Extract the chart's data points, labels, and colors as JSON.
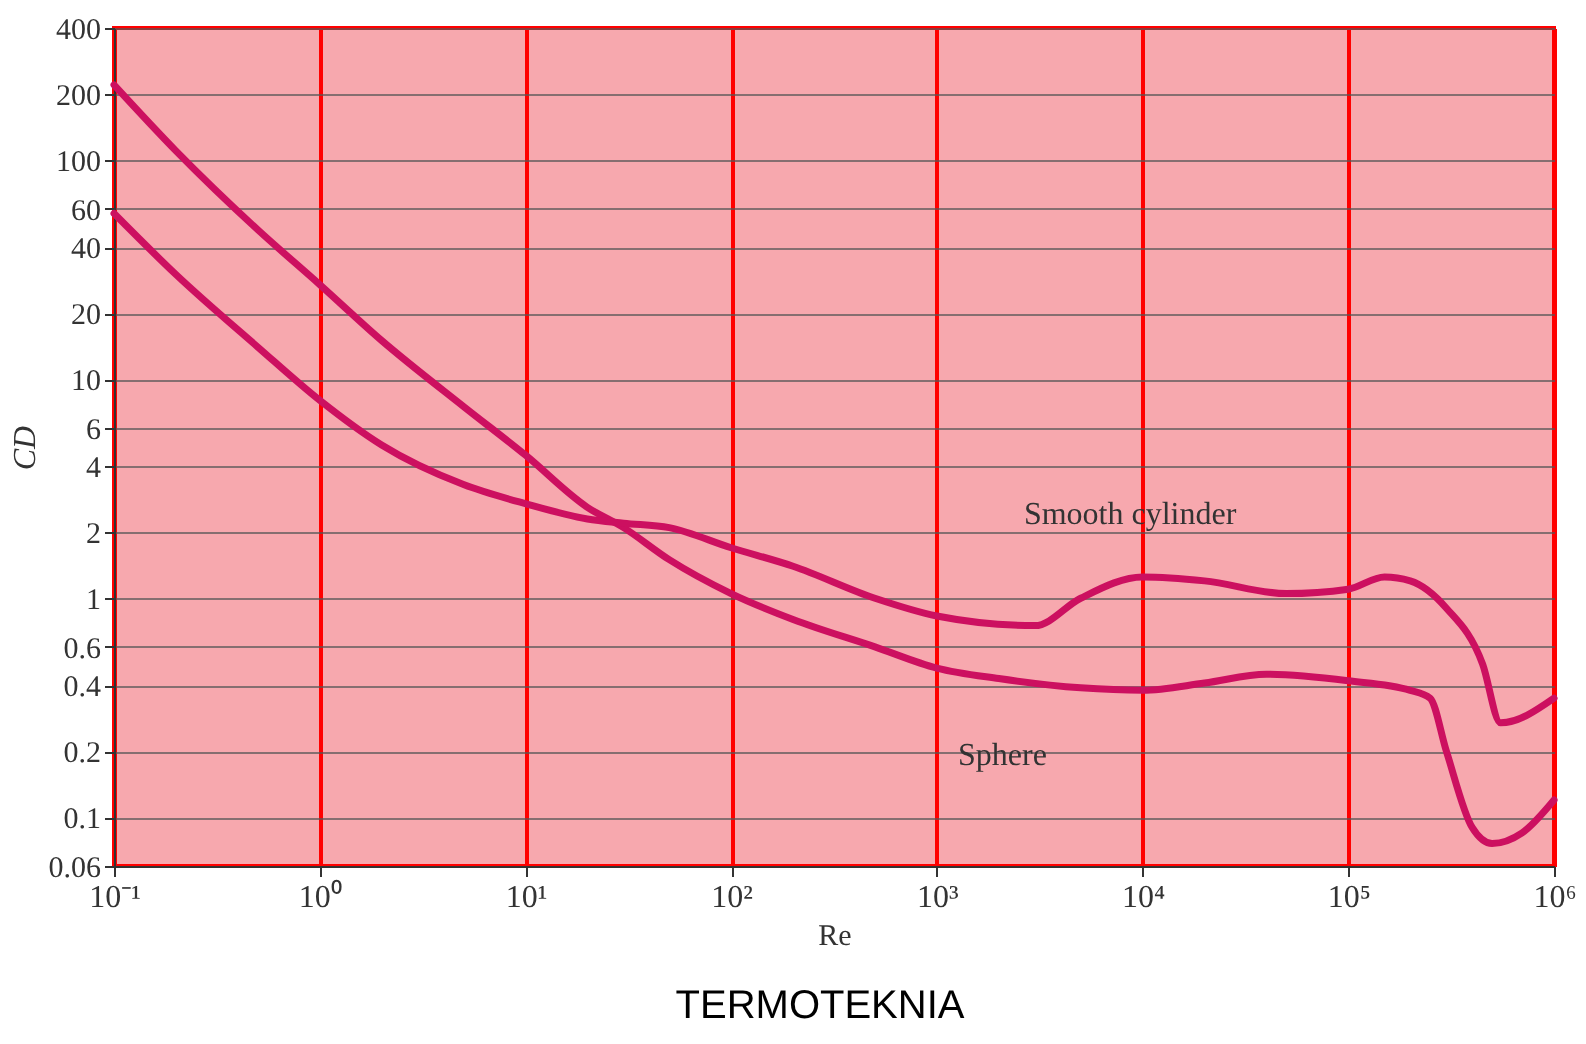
{
  "chart_data": {
    "type": "line",
    "xlabel": "Re",
    "ylabel": "CD",
    "log": "xy",
    "grid": true,
    "marker": "none",
    "line_style": "solid",
    "xlim": [
      0.1,
      1000000
    ],
    "ylim": [
      0.06,
      400
    ],
    "xticks": [
      {
        "value": 0.1,
        "label": "10⁻¹"
      },
      {
        "value": 1,
        "label": "10⁰"
      },
      {
        "value": 10,
        "label": "10¹"
      },
      {
        "value": 100,
        "label": "10²"
      },
      {
        "value": 1000,
        "label": "10³"
      },
      {
        "value": 10000,
        "label": "10⁴"
      },
      {
        "value": 100000,
        "label": "10⁵"
      },
      {
        "value": 1000000,
        "label": "10⁶"
      }
    ],
    "yticks": [
      0.06,
      0.1,
      0.2,
      0.4,
      0.6,
      1,
      2,
      4,
      6,
      10,
      20,
      40,
      60,
      100,
      200,
      400
    ],
    "series": [
      {
        "color": "#cc1060",
        "x": [
          0.1,
          0.2,
          0.5,
          1,
          2,
          5,
          10,
          20,
          30,
          50,
          100,
          200,
          500,
          1000,
          2000,
          5000,
          10000,
          20000,
          40000,
          100000,
          200000,
          250000,
          300000,
          400000,
          500000,
          700000,
          1000000
        ],
        "values": [
          220,
          110,
          48,
          27,
          15,
          7.5,
          4.5,
          2.6,
          2.1,
          1.5,
          1.05,
          0.8,
          0.6,
          0.48,
          0.43,
          0.39,
          0.38,
          0.41,
          0.45,
          0.42,
          0.38,
          0.35,
          0.2,
          0.09,
          0.076,
          0.085,
          0.12
        ]
      },
      {
        "color": "#cc1060",
        "x": [
          0.1,
          0.2,
          0.5,
          1,
          2,
          5,
          10,
          20,
          30,
          50,
          100,
          200,
          500,
          1000,
          3000,
          5000,
          10000,
          20000,
          50000,
          100000,
          150000,
          200000,
          300000,
          450000,
          550000,
          1000000
        ],
        "values": [
          57,
          30,
          14,
          8,
          5,
          3.3,
          2.7,
          2.3,
          2.2,
          2.1,
          1.7,
          1.4,
          1.0,
          0.83,
          0.75,
          1.0,
          1.25,
          1.2,
          1.05,
          1.1,
          1.25,
          1.2,
          0.9,
          0.5,
          0.27,
          0.35
        ]
      }
    ],
    "annotations": [
      {
        "text": "Smooth cylinder",
        "x": 50000,
        "y": 1.05
      },
      {
        "text": "Sphere",
        "x": 6000,
        "y": 0.4
      },
      "TERMOTEKNIA"
    ]
  }
}
